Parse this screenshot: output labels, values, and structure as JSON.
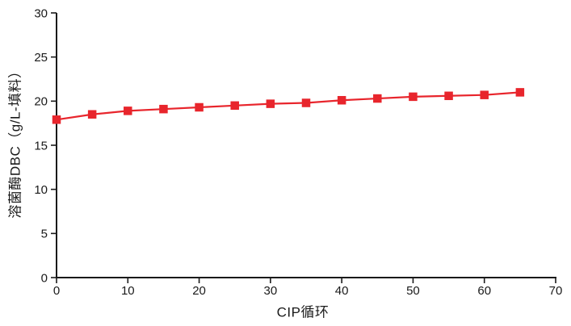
{
  "figure": {
    "background": "#ffffff",
    "axis_color": "#1a1a1a",
    "series_color": "#e8252c"
  },
  "chart_data": {
    "type": "line",
    "title": "",
    "xlabel": "CIP循环",
    "ylabel": "溶菌酶DBC（g/L-填料）",
    "x": [
      0,
      5,
      10,
      15,
      20,
      25,
      30,
      35,
      40,
      45,
      50,
      55,
      60,
      65
    ],
    "series": [
      {
        "name": "溶菌酶DBC",
        "color": "#e8252c",
        "marker": "square",
        "marker_size": 10.5,
        "values": [
          17.9,
          18.5,
          18.9,
          19.1,
          19.3,
          19.5,
          19.7,
          19.8,
          20.1,
          20.3,
          20.5,
          20.6,
          20.7,
          21.0
        ]
      }
    ],
    "xlim": [
      0,
      70
    ],
    "ylim": [
      0,
      30
    ],
    "xticks": [
      0,
      10,
      20,
      30,
      40,
      50,
      60,
      70
    ],
    "yticks": [
      0,
      5,
      10,
      15,
      20,
      25,
      30
    ],
    "grid": false,
    "legend": "none"
  }
}
